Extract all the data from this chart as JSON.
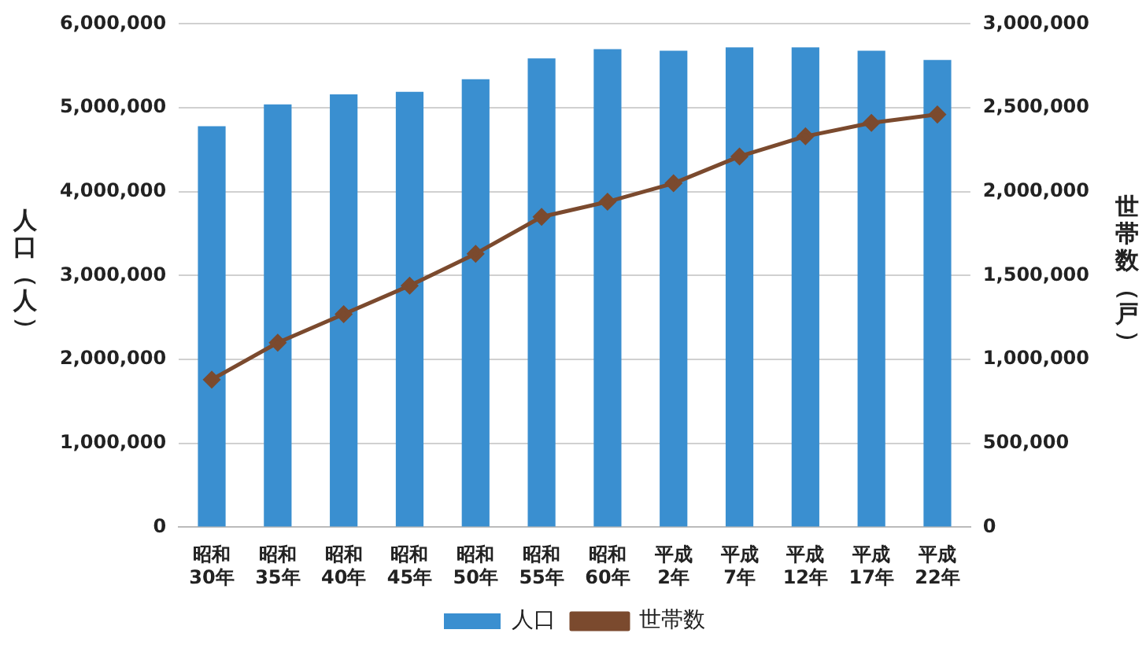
{
  "chart_data": {
    "type": "bar",
    "categories": [
      "昭和30年",
      "昭和35年",
      "昭和40年",
      "昭和45年",
      "昭和50年",
      "昭和55年",
      "昭和60年",
      "平成2年",
      "平成7年",
      "平成12年",
      "平成17年",
      "平成22年"
    ],
    "series": [
      {
        "name": "人口",
        "color": "#3a8fd0",
        "values": [
          4780000,
          5040000,
          5160000,
          5190000,
          5340000,
          5590000,
          5700000,
          5680000,
          5720000,
          5720000,
          5680000,
          5570000
        ]
      },
      {
        "name": "世帯数",
        "type": "line",
        "axis": "y2",
        "color": "#7b4a2e",
        "marker": "diamond",
        "values": [
          880000,
          1100000,
          1270000,
          1440000,
          1630000,
          1850000,
          1940000,
          2050000,
          2210000,
          2330000,
          2410000,
          2460000
        ]
      }
    ],
    "ylabel": "人口（人）",
    "y2label": "世帯数（戸）",
    "ylim": [
      0,
      6000000
    ],
    "yticks": [
      0,
      {
        "value": 1000000,
        "label": "1,000,000"
      },
      {
        "value": 2000000,
        "label": "2,000,000"
      },
      {
        "value": 3000000,
        "label": "3,000,000"
      },
      {
        "value": 4000000,
        "label": "4,000,000"
      },
      {
        "value": 5000000,
        "label": "5,000,000"
      },
      {
        "value": 6000000,
        "label": "6,000,000"
      }
    ],
    "y2lim": [
      0,
      3000000
    ],
    "y2ticks": [
      0,
      {
        "value": 500000,
        "label": "500,000"
      },
      {
        "value": 1000000,
        "label": "1,000,000"
      },
      {
        "value": 1500000,
        "label": "1,500,000"
      },
      {
        "value": 2000000,
        "label": "2,000,000"
      },
      {
        "value": 2500000,
        "label": "2,500,000"
      },
      {
        "value": 3000000,
        "label": "3,000,000"
      }
    ],
    "grid": "y",
    "legend": "bottom"
  }
}
